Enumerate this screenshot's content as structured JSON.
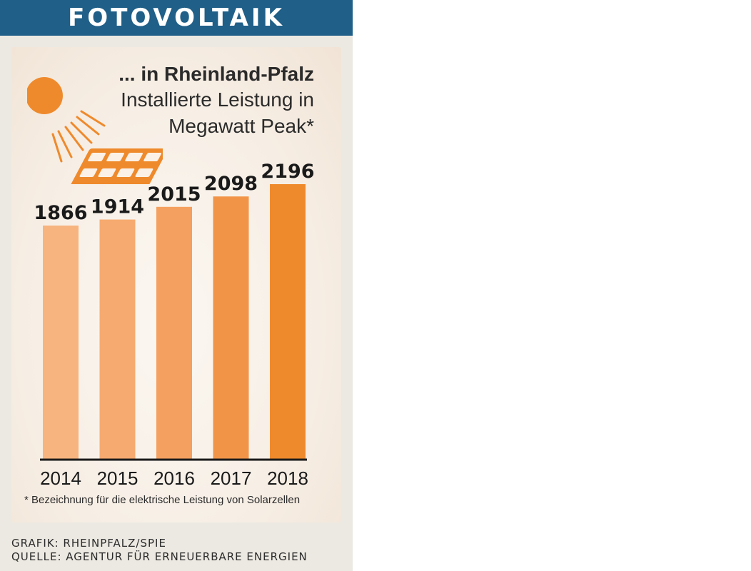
{
  "header": {
    "title": "FOTOVOLTAIK"
  },
  "card": {
    "title_line1": "... in Rheinland-Pfalz",
    "title_line2": "Installierte Leistung in",
    "title_line3": "Megawatt Peak*",
    "footnote": "* Bezeichnung für die elektrische Leistung von Solarzellen"
  },
  "credits": {
    "graphic": "GRAFIK: RHEINPFALZ/SPIE",
    "source": "QUELLE: AGENTUR FÜR ERNEUERBARE ENERGIEN"
  },
  "icons": {
    "sun": "sun-icon",
    "panel": "solar-panel-icon"
  },
  "colors": {
    "header": "#1f5f88",
    "sun": "#ef8a2c",
    "axis": "#1a1a1a"
  },
  "chart_data": {
    "type": "bar",
    "title": "... in Rheinland-Pfalz",
    "subtitle": "Installierte Leistung in Megawatt Peak*",
    "categories": [
      "2014",
      "2015",
      "2016",
      "2017",
      "2018"
    ],
    "values": [
      1866,
      1914,
      2015,
      2098,
      2196
    ],
    "value_labels": [
      "1866",
      "1914",
      "2015",
      "2098",
      "2196"
    ],
    "bar_colors": [
      "#f7b47f",
      "#f6aa6f",
      "#f4a060",
      "#f29448",
      "#ef8a2c"
    ],
    "xlabel": "",
    "ylabel": "",
    "ylim": [
      0,
      2196
    ],
    "grid": false,
    "legend": "none"
  }
}
